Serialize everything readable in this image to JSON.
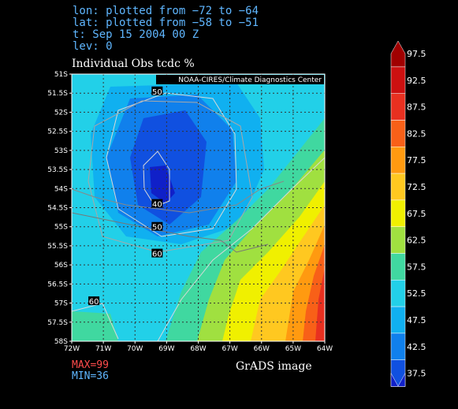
{
  "header": {
    "lon": "lon: plotted from −72 to −64",
    "lat": "lat: plotted from −58 to −51",
    "time": "t: Sep 15 2004 00 Z",
    "lev": "lev: 0"
  },
  "footer": {
    "max": "MAX=99",
    "min": "MIN=36",
    "credit": "GrADS image"
  },
  "chart_data": {
    "type": "heatmap",
    "title": "Individual Obs tcdc %",
    "annotation": "NOAA-CIRES/Climate Diagnostics Center",
    "x_ticks": [
      "72W",
      "71W",
      "70W",
      "69W",
      "68W",
      "67W",
      "66W",
      "65W",
      "64W"
    ],
    "y_ticks": [
      "51S",
      "51.5S",
      "52S",
      "52.5S",
      "53S",
      "53.5S",
      "54S",
      "54.5S",
      "55S",
      "55.5S",
      "56S",
      "56.5S",
      "57S",
      "57.5S",
      "58S"
    ],
    "xlim": [
      -72,
      -64
    ],
    "ylim": [
      -58,
      -51
    ],
    "grid": true,
    "colorbar": {
      "labels": [
        "97.5",
        "92.5",
        "87.5",
        "82.5",
        "77.5",
        "72.5",
        "67.5",
        "62.5",
        "57.5",
        "52.5",
        "47.5",
        "42.5",
        "37.5"
      ],
      "colors": [
        "#a00000",
        "#cc1010",
        "#e83020",
        "#f86018",
        "#ff9a10",
        "#ffc820",
        "#f0f000",
        "#a0e040",
        "#40d8a0",
        "#22d0e8",
        "#10b0f0",
        "#1080ec",
        "#1050e0",
        "#1020c8"
      ]
    },
    "contour_labels": [
      {
        "value": "50",
        "lon": -69.3,
        "lat": -51.45
      },
      {
        "value": "40",
        "lon": -69.3,
        "lat": -54.4
      },
      {
        "value": "50",
        "lon": -69.3,
        "lat": -55.0
      },
      {
        "value": "60",
        "lon": -69.3,
        "lat": -55.7
      },
      {
        "value": "60",
        "lon": -71.3,
        "lat": -56.95
      }
    ],
    "max": 99,
    "min": 36
  }
}
